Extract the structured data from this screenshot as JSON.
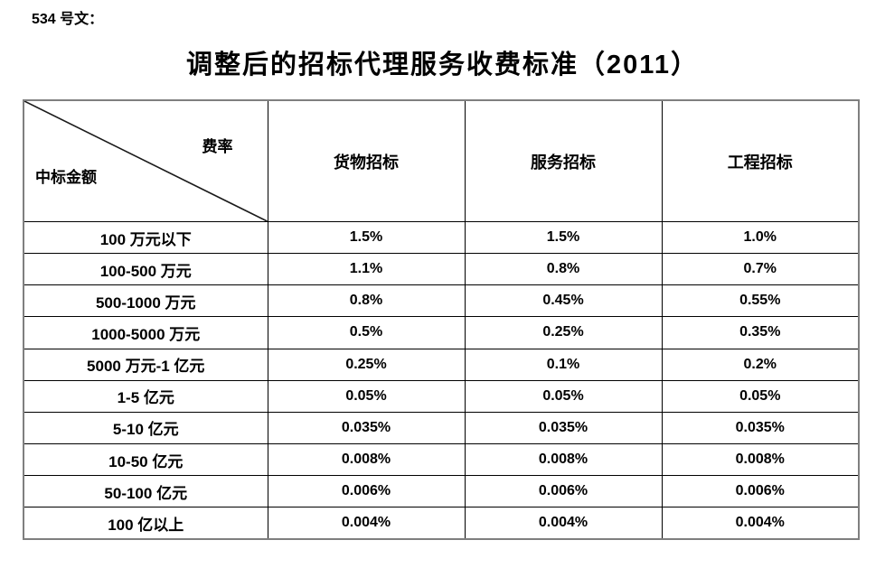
{
  "doc_label": "534 号文：",
  "title": "调整后的招标代理服务收费标准（2011）",
  "table": {
    "corner": {
      "top_right": "费率",
      "bottom_left": "中标金额"
    },
    "columns": [
      "货物招标",
      "服务招标",
      "工程招标"
    ],
    "rows": [
      {
        "label": "100 万元以下",
        "values": [
          "1.5%",
          "1.5%",
          "1.0%"
        ]
      },
      {
        "label": "100-500 万元",
        "values": [
          "1.1%",
          "0.8%",
          "0.7%"
        ]
      },
      {
        "label": "500-1000 万元",
        "values": [
          "0.8%",
          "0.45%",
          "0.55%"
        ]
      },
      {
        "label": "1000-5000 万元",
        "values": [
          "0.5%",
          "0.25%",
          "0.35%"
        ]
      },
      {
        "label": "5000 万元-1 亿元",
        "values": [
          "0.25%",
          "0.1%",
          "0.2%"
        ]
      },
      {
        "label": "1-5 亿元",
        "values": [
          "0.05%",
          "0.05%",
          "0.05%"
        ]
      },
      {
        "label": "5-10 亿元",
        "values": [
          "0.035%",
          "0.035%",
          "0.035%"
        ]
      },
      {
        "label": "10-50 亿元",
        "values": [
          "0.008%",
          "0.008%",
          "0.008%"
        ]
      },
      {
        "label": "50-100 亿元",
        "values": [
          "0.006%",
          "0.006%",
          "0.006%"
        ]
      },
      {
        "label": "100 亿以上",
        "values": [
          "0.004%",
          "0.004%",
          "0.004%"
        ]
      }
    ]
  },
  "colors": {
    "text": "#000000",
    "border_outer": "#7f7f7f",
    "border_inner": "#000000",
    "diagonal_line": "#1a1a1a",
    "background": "#ffffff"
  }
}
